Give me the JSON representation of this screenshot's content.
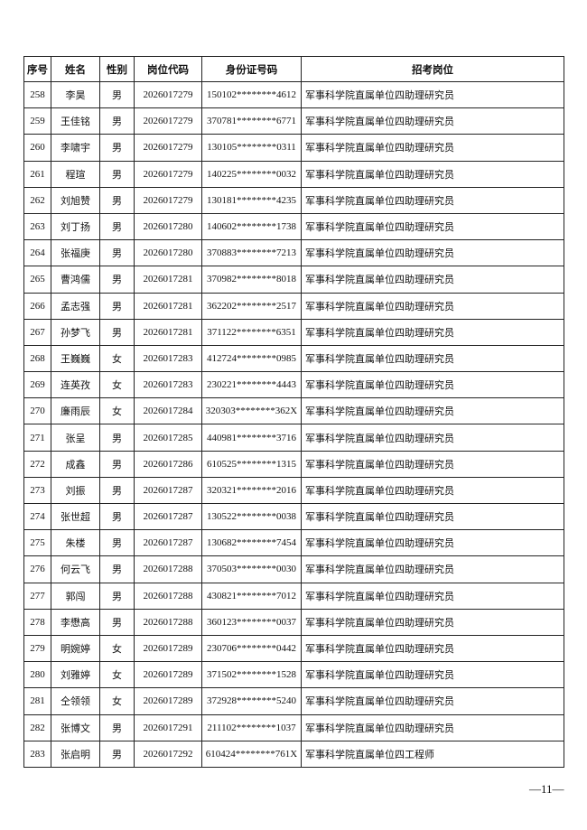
{
  "table": {
    "header": [
      "序号",
      "姓名",
      "性别",
      "岗位代码",
      "身份证号码",
      "招考岗位"
    ],
    "rows": [
      [
        "258",
        "李昊",
        "男",
        "2026017279",
        "150102********4612",
        "军事科学院直属单位四助理研究员"
      ],
      [
        "259",
        "王佳铭",
        "男",
        "2026017279",
        "370781********6771",
        "军事科学院直属单位四助理研究员"
      ],
      [
        "260",
        "李啸宇",
        "男",
        "2026017279",
        "130105********0311",
        "军事科学院直属单位四助理研究员"
      ],
      [
        "261",
        "程瑄",
        "男",
        "2026017279",
        "140225********0032",
        "军事科学院直属单位四助理研究员"
      ],
      [
        "262",
        "刘旭赞",
        "男",
        "2026017279",
        "130181********4235",
        "军事科学院直属单位四助理研究员"
      ],
      [
        "263",
        "刘丁扬",
        "男",
        "2026017280",
        "140602********1738",
        "军事科学院直属单位四助理研究员"
      ],
      [
        "264",
        "张福庚",
        "男",
        "2026017280",
        "370883********7213",
        "军事科学院直属单位四助理研究员"
      ],
      [
        "265",
        "曹鸿儒",
        "男",
        "2026017281",
        "370982********8018",
        "军事科学院直属单位四助理研究员"
      ],
      [
        "266",
        "孟志强",
        "男",
        "2026017281",
        "362202********2517",
        "军事科学院直属单位四助理研究员"
      ],
      [
        "267",
        "孙梦飞",
        "男",
        "2026017281",
        "371122********6351",
        "军事科学院直属单位四助理研究员"
      ],
      [
        "268",
        "王巍巍",
        "女",
        "2026017283",
        "412724********0985",
        "军事科学院直属单位四助理研究员"
      ],
      [
        "269",
        "连英孜",
        "女",
        "2026017283",
        "230221********4443",
        "军事科学院直属单位四助理研究员"
      ],
      [
        "270",
        "廉雨辰",
        "女",
        "2026017284",
        "320303********362X",
        "军事科学院直属单位四助理研究员"
      ],
      [
        "271",
        "张呈",
        "男",
        "2026017285",
        "440981********3716",
        "军事科学院直属单位四助理研究员"
      ],
      [
        "272",
        "成鑫",
        "男",
        "2026017286",
        "610525********1315",
        "军事科学院直属单位四助理研究员"
      ],
      [
        "273",
        "刘振",
        "男",
        "2026017287",
        "320321********2016",
        "军事科学院直属单位四助理研究员"
      ],
      [
        "274",
        "张世超",
        "男",
        "2026017287",
        "130522********0038",
        "军事科学院直属单位四助理研究员"
      ],
      [
        "275",
        "朱楼",
        "男",
        "2026017287",
        "130682********7454",
        "军事科学院直属单位四助理研究员"
      ],
      [
        "276",
        "何云飞",
        "男",
        "2026017288",
        "370503********0030",
        "军事科学院直属单位四助理研究员"
      ],
      [
        "277",
        "郭闯",
        "男",
        "2026017288",
        "430821********7012",
        "军事科学院直属单位四助理研究员"
      ],
      [
        "278",
        "李懋高",
        "男",
        "2026017288",
        "360123********0037",
        "军事科学院直属单位四助理研究员"
      ],
      [
        "279",
        "明婉婷",
        "女",
        "2026017289",
        "230706********0442",
        "军事科学院直属单位四助理研究员"
      ],
      [
        "280",
        "刘雅婷",
        "女",
        "2026017289",
        "371502********1528",
        "军事科学院直属单位四助理研究员"
      ],
      [
        "281",
        "仝领领",
        "女",
        "2026017289",
        "372928********5240",
        "军事科学院直属单位四助理研究员"
      ],
      [
        "282",
        "张博文",
        "男",
        "2026017291",
        "211102********1037",
        "军事科学院直属单位四助理研究员"
      ],
      [
        "283",
        "张启明",
        "男",
        "2026017292",
        "610424********761X",
        "军事科学院直属单位四工程师"
      ]
    ]
  },
  "footer": {
    "page_number": "—11—"
  }
}
